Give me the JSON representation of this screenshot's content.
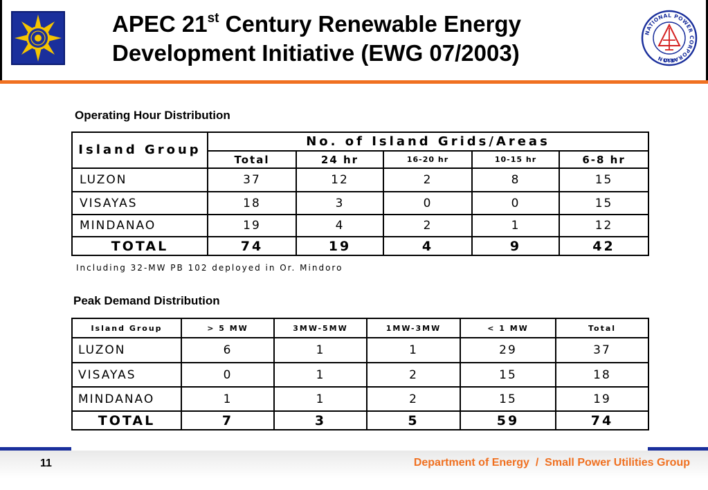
{
  "header": {
    "title_part1": "APEC 21",
    "title_sup": "st",
    "title_part2": " Century Renewable Energy",
    "title_line2": "Development Initiative (EWG 07/2003)",
    "accent_color": "#f07020",
    "brand_color": "#1a2f9c"
  },
  "logos": {
    "left": "department-of-energy-seal",
    "right": "national-power-corporation-seal",
    "right_text": "NATIONAL POWER CORPORATION",
    "right_year": "1936"
  },
  "operating": {
    "heading": "Operating Hour Distribution",
    "col_group": "Island Group",
    "col_span": "No. of Island Grids/Areas",
    "subcols": [
      "Total",
      "24 hr",
      "16-20 hr",
      "10-15 hr",
      "6-8 hr"
    ],
    "rows": [
      {
        "name": "LUZON",
        "values": [
          "37",
          "12",
          "2",
          "8",
          "15"
        ]
      },
      {
        "name": "VISAYAS",
        "values": [
          "18",
          "3",
          "0",
          "0",
          "15"
        ]
      },
      {
        "name": "MINDANAO",
        "values": [
          "19",
          "4",
          "2",
          "1",
          "12"
        ]
      }
    ],
    "total": {
      "name": "TOTAL",
      "values": [
        "74",
        "19",
        "4",
        "9",
        "42"
      ]
    },
    "note": "Including 32-MW PB 102 deployed in Or. Mindoro"
  },
  "peak": {
    "heading": "Peak Demand Distribution",
    "headers": [
      "Island Group",
      "> 5 MW",
      "3MW-5MW",
      "1MW-3MW",
      "< 1 MW",
      "Total"
    ],
    "rows": [
      {
        "name": "LUZON",
        "values": [
          "6",
          "1",
          "1",
          "29",
          "37"
        ]
      },
      {
        "name": "VISAYAS",
        "values": [
          "0",
          "1",
          "2",
          "15",
          "18"
        ]
      },
      {
        "name": "MINDANAO",
        "values": [
          "1",
          "1",
          "2",
          "15",
          "19"
        ]
      }
    ],
    "total": {
      "name": "TOTAL",
      "values": [
        "7",
        "3",
        "5",
        "59",
        "74"
      ]
    }
  },
  "footer": {
    "page_number": "11",
    "text": "Department of Energy  /  Small Power Utilities Group"
  }
}
